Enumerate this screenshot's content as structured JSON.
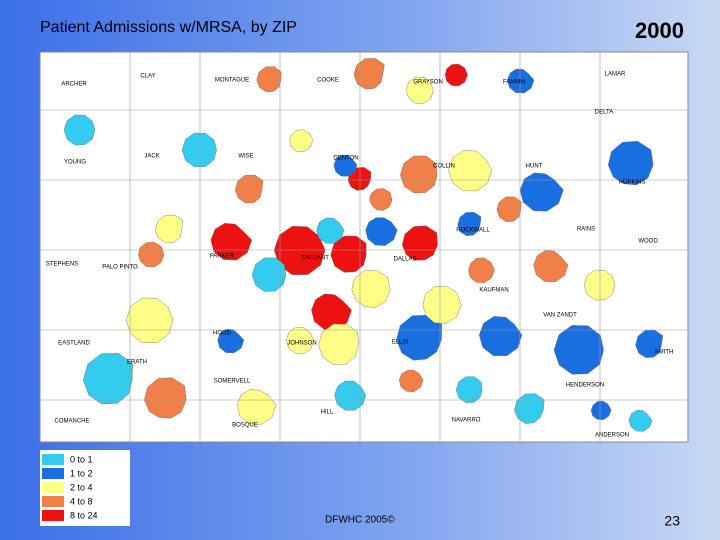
{
  "header": {
    "title": "Patient Admissions w/MRSA, by ZIP",
    "year": "2000"
  },
  "map": {
    "counties": [
      "CLAY",
      "MONTAGUE",
      "COOKE",
      "GRAYSON",
      "FANNIN",
      "LAMAR",
      "ARCHER",
      "DELTA",
      "JACK",
      "WISE",
      "DENTON",
      "COLLIN",
      "HUNT",
      "YOUNG",
      "HOPKINS",
      "ROCKWALL",
      "RAINS",
      "WOOD",
      "STEPHENS",
      "PALO PINTO",
      "PARKER",
      "TARRANT",
      "DALLAS",
      "KAUFMAN",
      "VAN ZANDT",
      "HOOD",
      "EASTLAND",
      "JOHNSON",
      "ELLIS",
      "SMITH",
      "ERATH",
      "SOMERVELL",
      "HENDERSON",
      "HILL",
      "NAVARRO",
      "COMANCHE",
      "BOSQUE",
      "ANDERSON"
    ]
  },
  "legend": [
    {
      "label": "0 to 1",
      "color": "#33ccee"
    },
    {
      "label": "1 to 2",
      "color": "#1a6fe0"
    },
    {
      "label": "2 to 4",
      "color": "#ffff88"
    },
    {
      "label": "4 to 8",
      "color": "#f08048"
    },
    {
      "label": "8 to 24",
      "color": "#ee1111"
    }
  ],
  "footer": {
    "credit": "DFWHC 2005©",
    "page": "23"
  }
}
